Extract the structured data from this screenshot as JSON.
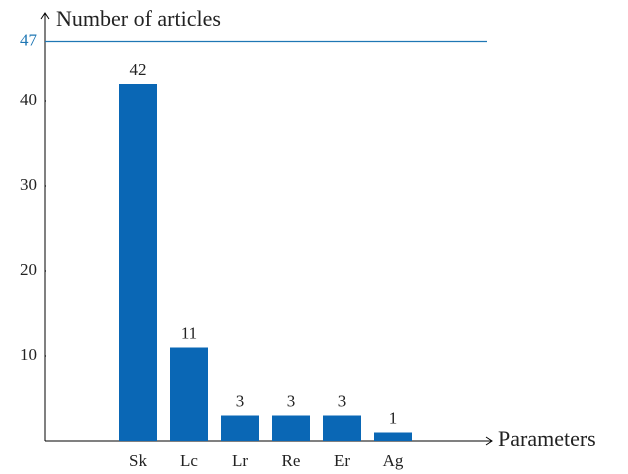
{
  "chart_data": {
    "type": "bar",
    "y_label": "Number of articles",
    "x_label": "Parameters",
    "categories": [
      "Sk",
      "Lc",
      "Lr",
      "Re",
      "Er",
      "Ag"
    ],
    "values": [
      42,
      11,
      3,
      3,
      3,
      1
    ],
    "color": "#0a67b5",
    "ylim": [
      0,
      50
    ],
    "yticks": [
      10,
      20,
      30,
      40
    ],
    "reference_line": {
      "value": 47,
      "color": "#1f77b4"
    }
  }
}
